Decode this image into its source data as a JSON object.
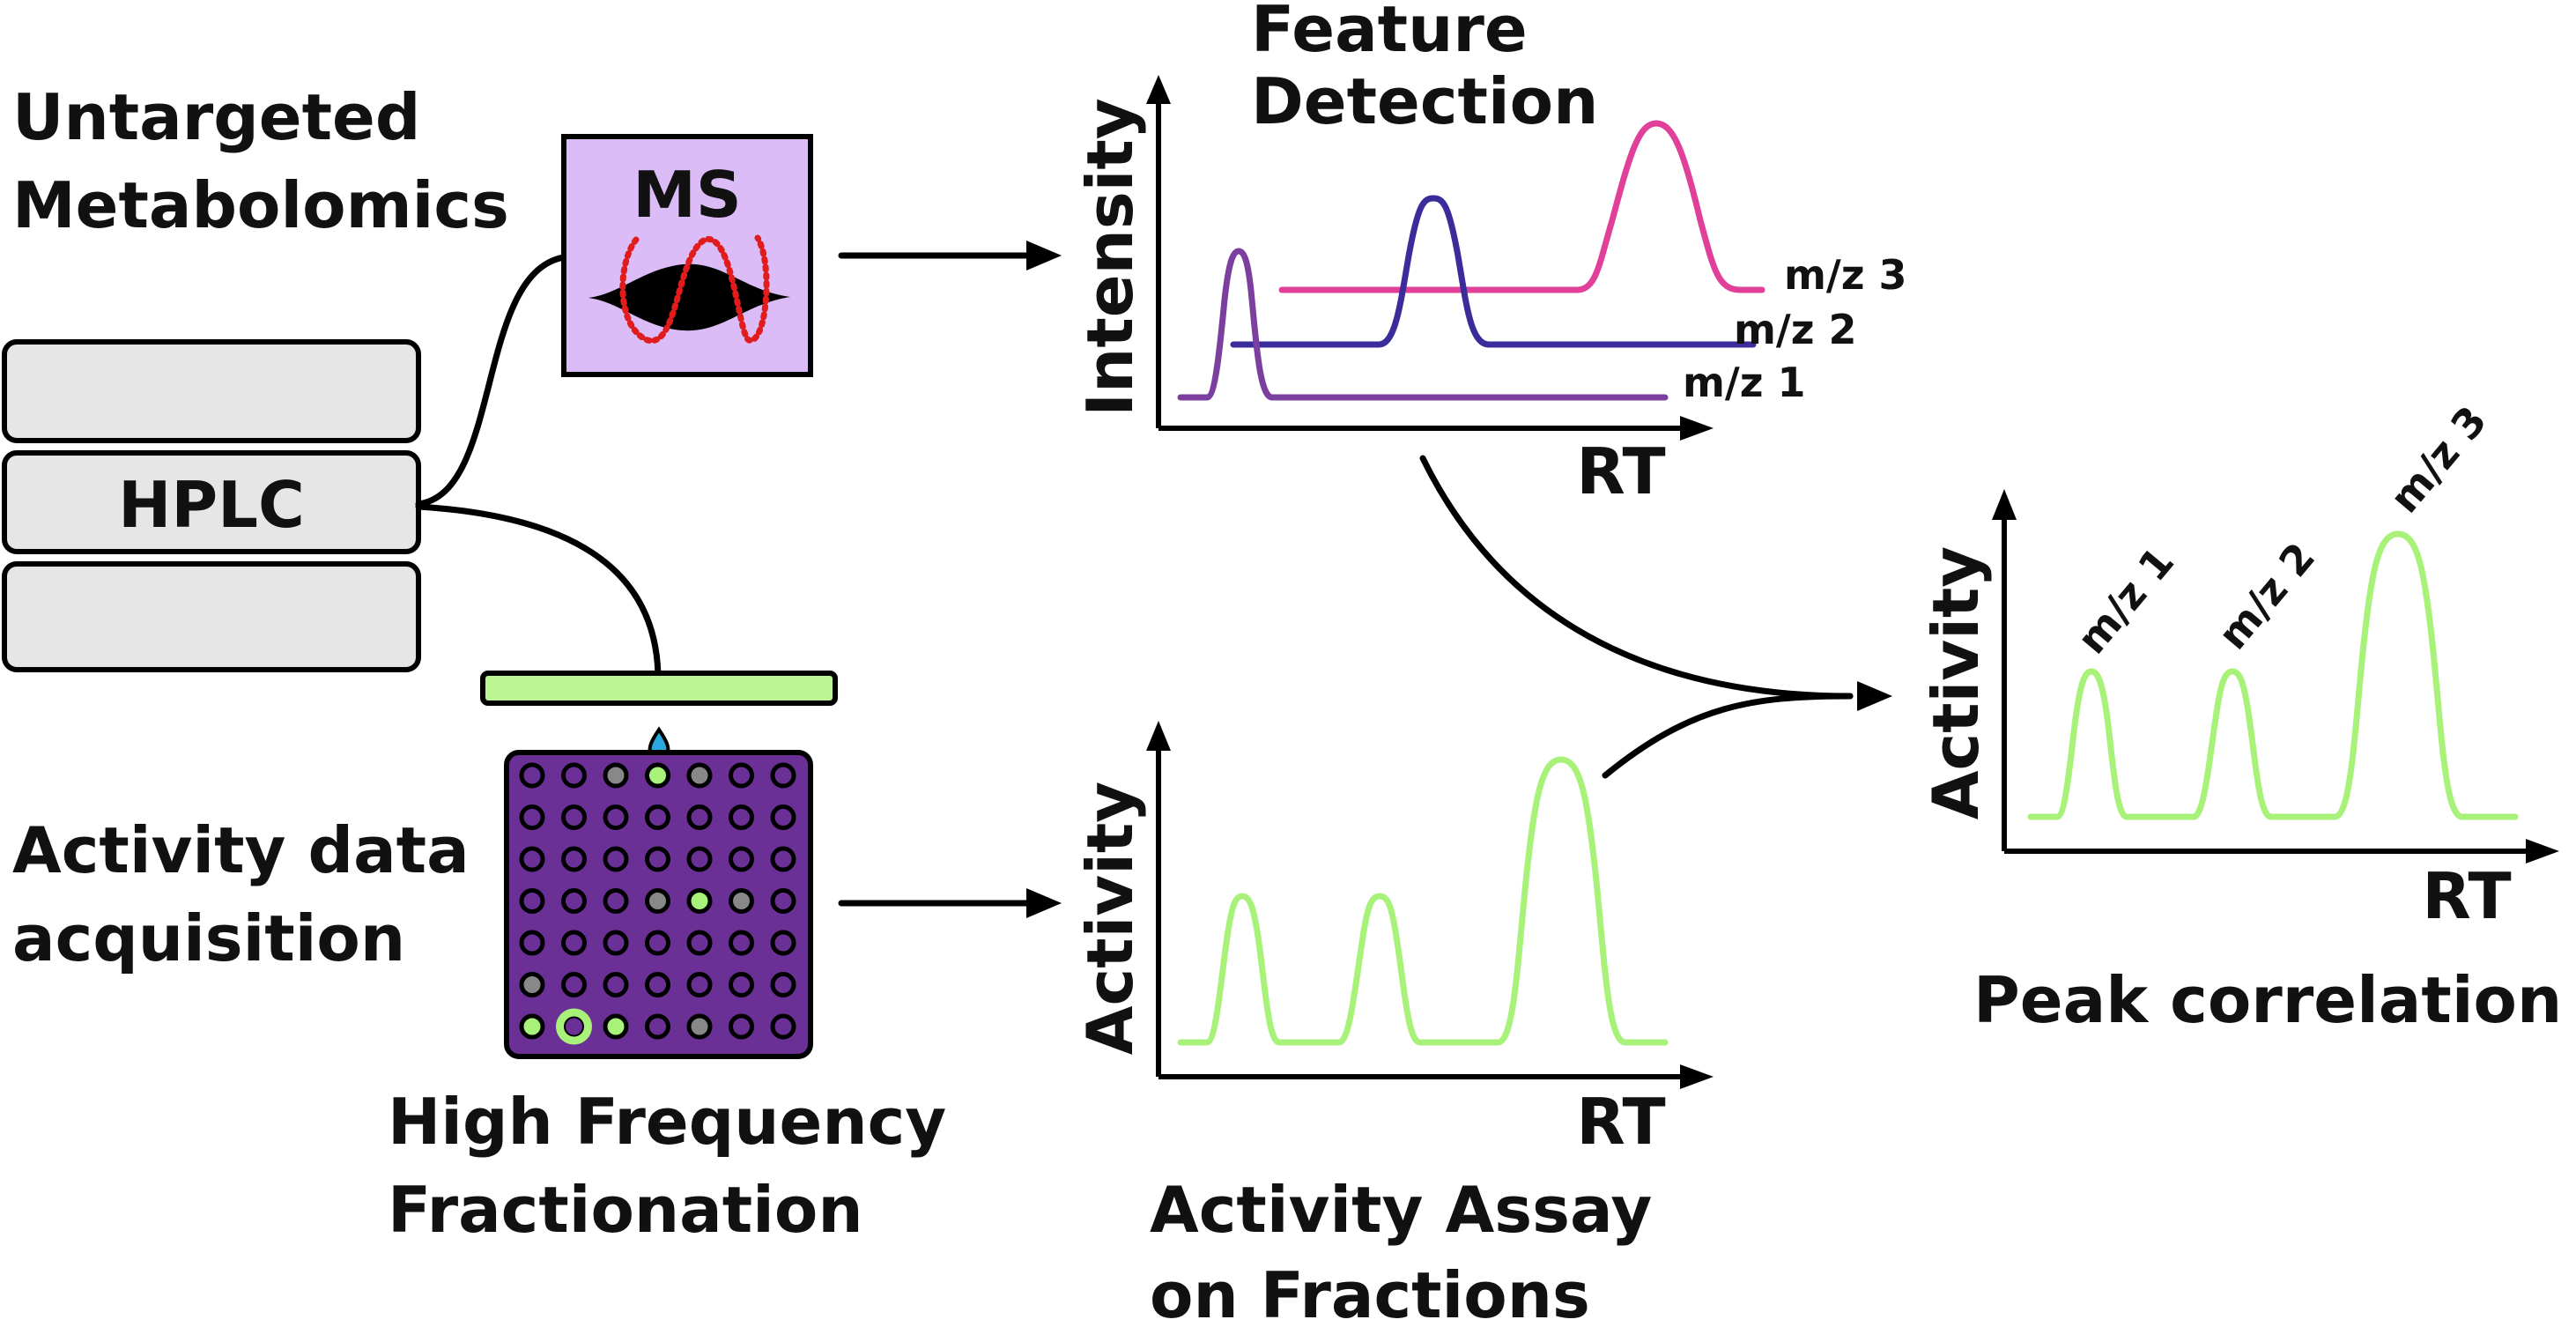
{
  "labels": {
    "untargeted_line1": "Untargeted",
    "untargeted_line2": "Metabolomics",
    "ms": "MS",
    "hplc": "HPLC",
    "activity_line1": "Activity data",
    "activity_line2": "acquisition",
    "hff_line1": "High Frequency",
    "hff_line2": "Fractionation",
    "feature_line1": "Feature",
    "feature_line2": "Detection",
    "assay_line1": "Activity Assay",
    "assay_line2": "on Fractions",
    "peak_correlation": "Peak correlation"
  },
  "charts": {
    "feature_detection": {
      "ylabel": "Intensity",
      "xlabel": "RT",
      "series": [
        {
          "name": "m/z 1",
          "color": "#7b3fa0"
        },
        {
          "name": "m/z 2",
          "color": "#3a2c9a"
        },
        {
          "name": "m/z 3",
          "color": "#e0409a"
        }
      ]
    },
    "activity_assay": {
      "ylabel": "Activity",
      "xlabel": "RT",
      "color": "#a8f27a"
    },
    "peak_correlation": {
      "ylabel": "Activity",
      "xlabel": "RT",
      "peaks": [
        "m/z 1",
        "m/z 2",
        "m/z 3"
      ],
      "color": "#a8f27a"
    }
  },
  "colors": {
    "ms_box": "#dcbcf7",
    "ms_ring": "#e01c1c",
    "hplc": "#e6e6e6",
    "plate": "#6a3096",
    "plate_bar": "#bdf593",
    "active_well": "#a8f27a",
    "inactive_well": "#888888",
    "droplet": "#29a9e0"
  }
}
